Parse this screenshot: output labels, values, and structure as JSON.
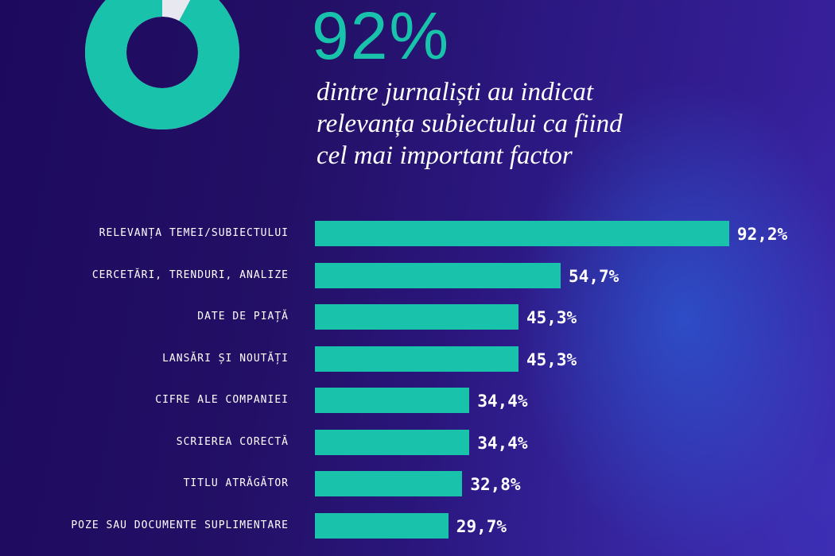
{
  "headline": {
    "percent": "92%",
    "lines": [
      "dintre jurnaliști au indicat",
      "relevanța subiectului ca fiind",
      "cel mai important factor"
    ]
  },
  "donut": {
    "fraction": 0.922,
    "fill_color": "#19c2aa",
    "remainder_color": "#e8e8f0"
  },
  "colors": {
    "bar": "#19c2aa",
    "text": "#ffffff",
    "background": "#231066"
  },
  "chart_data": {
    "type": "bar",
    "orientation": "horizontal",
    "categories": [
      "RELEVANȚA TEMEI/SUBIECTULUI",
      "CERCETĂRI, TRENDURI, ANALIZE",
      "DATE DE PIAȚĂ",
      "LANSĂRI ȘI NOUTĂȚI",
      "CIFRE ALE COMPANIEI",
      "SCRIEREA CORECTĂ",
      "TITLU ATRĂGĂTOR",
      "POZE SAU DOCUMENTE SUPLIMENTARE"
    ],
    "values": [
      92.2,
      54.7,
      45.3,
      45.3,
      34.4,
      34.4,
      32.8,
      29.7
    ],
    "value_labels": [
      "92,2%",
      "54,7%",
      "45,3%",
      "45,3%",
      "34,4%",
      "34,4%",
      "32,8%",
      "29,7%"
    ],
    "xlim": [
      0,
      100
    ],
    "grid": false,
    "legend": "none"
  }
}
